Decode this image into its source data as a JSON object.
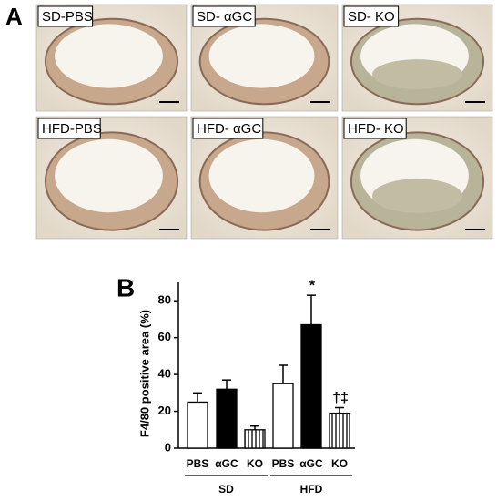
{
  "panel_a": {
    "label": "A",
    "images": [
      "SD-PBS",
      "SD- αGC",
      "SD- KO",
      "HFD-PBS",
      "HFD- αGC",
      "HFD- KO"
    ]
  },
  "chart_data": {
    "type": "bar",
    "panel_label": "B",
    "ylabel": "F4/80 positive area (%)",
    "categories": [
      "PBS",
      "αGC",
      "KO",
      "PBS",
      "αGC",
      "KO"
    ],
    "x_groups": [
      "SD",
      "HFD"
    ],
    "values": [
      25,
      32,
      10,
      35,
      67,
      19
    ],
    "errors": [
      5,
      5,
      2,
      10,
      16,
      3
    ],
    "bar_styles": [
      "open",
      "solid",
      "striped",
      "open",
      "solid",
      "striped"
    ],
    "markers": [
      null,
      null,
      null,
      null,
      "*",
      "†‡"
    ],
    "ylim": [
      0,
      90
    ],
    "yticks": [
      0,
      20,
      40,
      60,
      80
    ]
  }
}
